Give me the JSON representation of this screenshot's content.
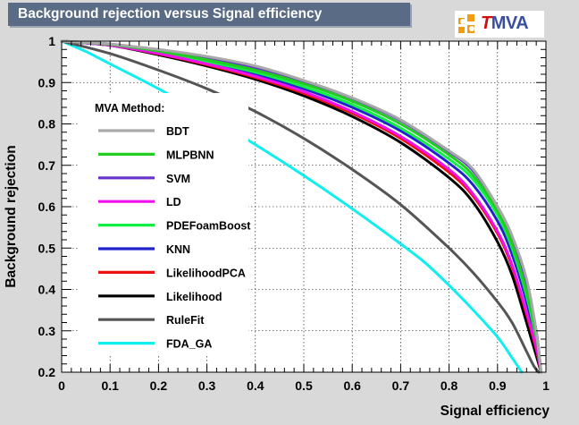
{
  "header": {
    "title": "Background rejection versus Signal efficiency"
  },
  "logo": {
    "prefix": "T",
    "text": "MVA"
  },
  "chart_data": {
    "type": "line",
    "title": "Background rejection versus Signal efficiency",
    "xlabel": "Signal efficiency",
    "ylabel": "Background rejection",
    "xlim": [
      0,
      1
    ],
    "ylim": [
      0.2,
      1
    ],
    "grid": true,
    "x_ticks": [
      "0",
      "0.1",
      "0.2",
      "0.3",
      "0.4",
      "0.5",
      "0.6",
      "0.7",
      "0.8",
      "0.9",
      "1"
    ],
    "y_ticks": [
      "0.2",
      "0.3",
      "0.4",
      "0.5",
      "0.6",
      "0.7",
      "0.8",
      "0.9",
      "1"
    ],
    "legend_title": "MVA Method:",
    "legend_position": "left",
    "series": [
      {
        "name": "BDT",
        "color": "#a9a9a9",
        "x": [
          0,
          0.1,
          0.2,
          0.3,
          0.4,
          0.5,
          0.6,
          0.7,
          0.8,
          0.85,
          0.9,
          0.93,
          0.96,
          0.98,
          0.99
        ],
        "y": [
          1,
          0.993,
          0.98,
          0.963,
          0.94,
          0.905,
          0.863,
          0.81,
          0.735,
          0.69,
          0.6,
          0.53,
          0.425,
          0.3,
          0.2
        ]
      },
      {
        "name": "MLPBNN",
        "color": "#22cc22",
        "x": [
          0,
          0.1,
          0.2,
          0.3,
          0.4,
          0.5,
          0.6,
          0.7,
          0.8,
          0.85,
          0.9,
          0.93,
          0.96,
          0.98,
          0.99
        ],
        "y": [
          1,
          0.992,
          0.976,
          0.955,
          0.93,
          0.897,
          0.855,
          0.8,
          0.725,
          0.675,
          0.59,
          0.51,
          0.395,
          0.29,
          0.2
        ]
      },
      {
        "name": "SVM",
        "color": "#6633cc",
        "x": [
          0,
          0.1,
          0.2,
          0.3,
          0.4,
          0.5,
          0.6,
          0.7,
          0.8,
          0.85,
          0.9,
          0.93,
          0.96,
          0.98,
          0.99
        ],
        "y": [
          1,
          0.993,
          0.978,
          0.958,
          0.935,
          0.903,
          0.862,
          0.808,
          0.733,
          0.686,
          0.6,
          0.525,
          0.41,
          0.3,
          0.2
        ]
      },
      {
        "name": "LD",
        "color": "#ee11ee",
        "x": [
          0,
          0.1,
          0.2,
          0.3,
          0.4,
          0.5,
          0.6,
          0.7,
          0.8,
          0.85,
          0.9,
          0.93,
          0.96,
          0.98,
          0.99
        ],
        "y": [
          1,
          0.99,
          0.97,
          0.945,
          0.915,
          0.878,
          0.83,
          0.77,
          0.69,
          0.63,
          0.54,
          0.46,
          0.345,
          0.26,
          0.2
        ]
      },
      {
        "name": "PDEFoamBoost",
        "color": "#11ee44",
        "x": [
          0,
          0.1,
          0.2,
          0.3,
          0.4,
          0.5,
          0.6,
          0.7,
          0.8,
          0.85,
          0.9,
          0.93,
          0.96,
          0.98,
          0.99
        ],
        "y": [
          1,
          0.991,
          0.974,
          0.951,
          0.925,
          0.89,
          0.847,
          0.79,
          0.715,
          0.665,
          0.58,
          0.5,
          0.385,
          0.28,
          0.2
        ]
      },
      {
        "name": "KNN",
        "color": "#2222cc",
        "x": [
          0,
          0.1,
          0.2,
          0.3,
          0.4,
          0.5,
          0.6,
          0.7,
          0.8,
          0.85,
          0.9,
          0.93,
          0.96,
          0.98,
          0.99
        ],
        "y": [
          1,
          0.99,
          0.972,
          0.948,
          0.92,
          0.885,
          0.84,
          0.783,
          0.705,
          0.652,
          0.565,
          0.485,
          0.37,
          0.27,
          0.2
        ]
      },
      {
        "name": "LikelihoodPCA",
        "color": "#ee1111",
        "x": [
          0,
          0.1,
          0.2,
          0.3,
          0.4,
          0.5,
          0.6,
          0.7,
          0.8,
          0.85,
          0.9,
          0.93,
          0.96,
          0.98,
          0.99
        ],
        "y": [
          1,
          0.99,
          0.969,
          0.943,
          0.912,
          0.874,
          0.826,
          0.765,
          0.683,
          0.625,
          0.535,
          0.455,
          0.34,
          0.255,
          0.2
        ]
      },
      {
        "name": "Likelihood",
        "color": "#000000",
        "x": [
          0,
          0.1,
          0.2,
          0.3,
          0.4,
          0.5,
          0.6,
          0.7,
          0.8,
          0.85,
          0.9,
          0.93,
          0.96,
          0.98,
          0.99
        ],
        "y": [
          1,
          0.99,
          0.967,
          0.94,
          0.908,
          0.868,
          0.818,
          0.755,
          0.67,
          0.61,
          0.515,
          0.435,
          0.32,
          0.24,
          0.2
        ]
      },
      {
        "name": "RuleFit",
        "color": "#555555",
        "x": [
          0,
          0.1,
          0.2,
          0.3,
          0.4,
          0.5,
          0.6,
          0.7,
          0.8,
          0.85,
          0.9,
          0.93,
          0.96,
          0.975,
          0.985
        ],
        "y": [
          1,
          0.97,
          0.93,
          0.885,
          0.83,
          0.765,
          0.69,
          0.605,
          0.5,
          0.44,
          0.37,
          0.32,
          0.25,
          0.215,
          0.2
        ]
      },
      {
        "name": "FDA_GA",
        "color": "#11eeee",
        "x": [
          0,
          0.05,
          0.1,
          0.2,
          0.3,
          0.4,
          0.5,
          0.6,
          0.7,
          0.75,
          0.8,
          0.85,
          0.9,
          0.93,
          0.95
        ],
        "y": [
          1,
          0.975,
          0.945,
          0.885,
          0.82,
          0.75,
          0.675,
          0.595,
          0.51,
          0.465,
          0.41,
          0.35,
          0.285,
          0.235,
          0.2
        ]
      }
    ]
  }
}
